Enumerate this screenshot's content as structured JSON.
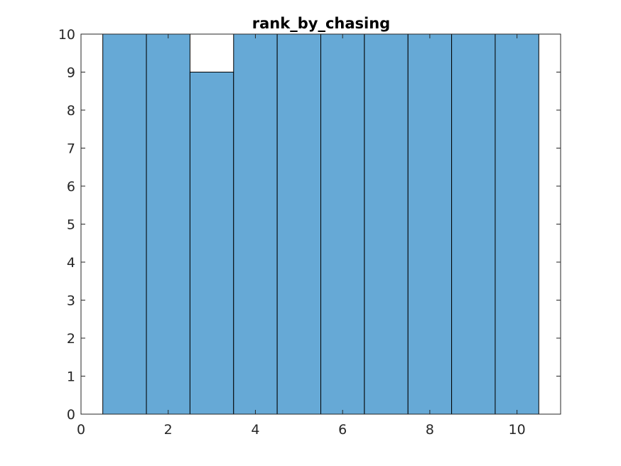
{
  "chart_data": {
    "type": "bar",
    "title": "rank_by_chasing",
    "xlabel": "",
    "ylabel": "",
    "categories": [
      1,
      2,
      3,
      4,
      5,
      6,
      7,
      8,
      9,
      10
    ],
    "values": [
      10,
      10,
      9,
      10,
      10,
      10,
      10,
      10,
      10,
      10
    ],
    "bar_width": 1,
    "xlim": [
      0,
      11
    ],
    "ylim": [
      0,
      10
    ],
    "xticks": [
      0,
      2,
      4,
      6,
      8,
      10
    ],
    "yticks": [
      0,
      1,
      2,
      3,
      4,
      5,
      6,
      7,
      8,
      9,
      10
    ],
    "grid": false,
    "legend": "none",
    "bar_color": "#66A9D6",
    "edge_color": "#000000",
    "axis_color": "#262626"
  }
}
